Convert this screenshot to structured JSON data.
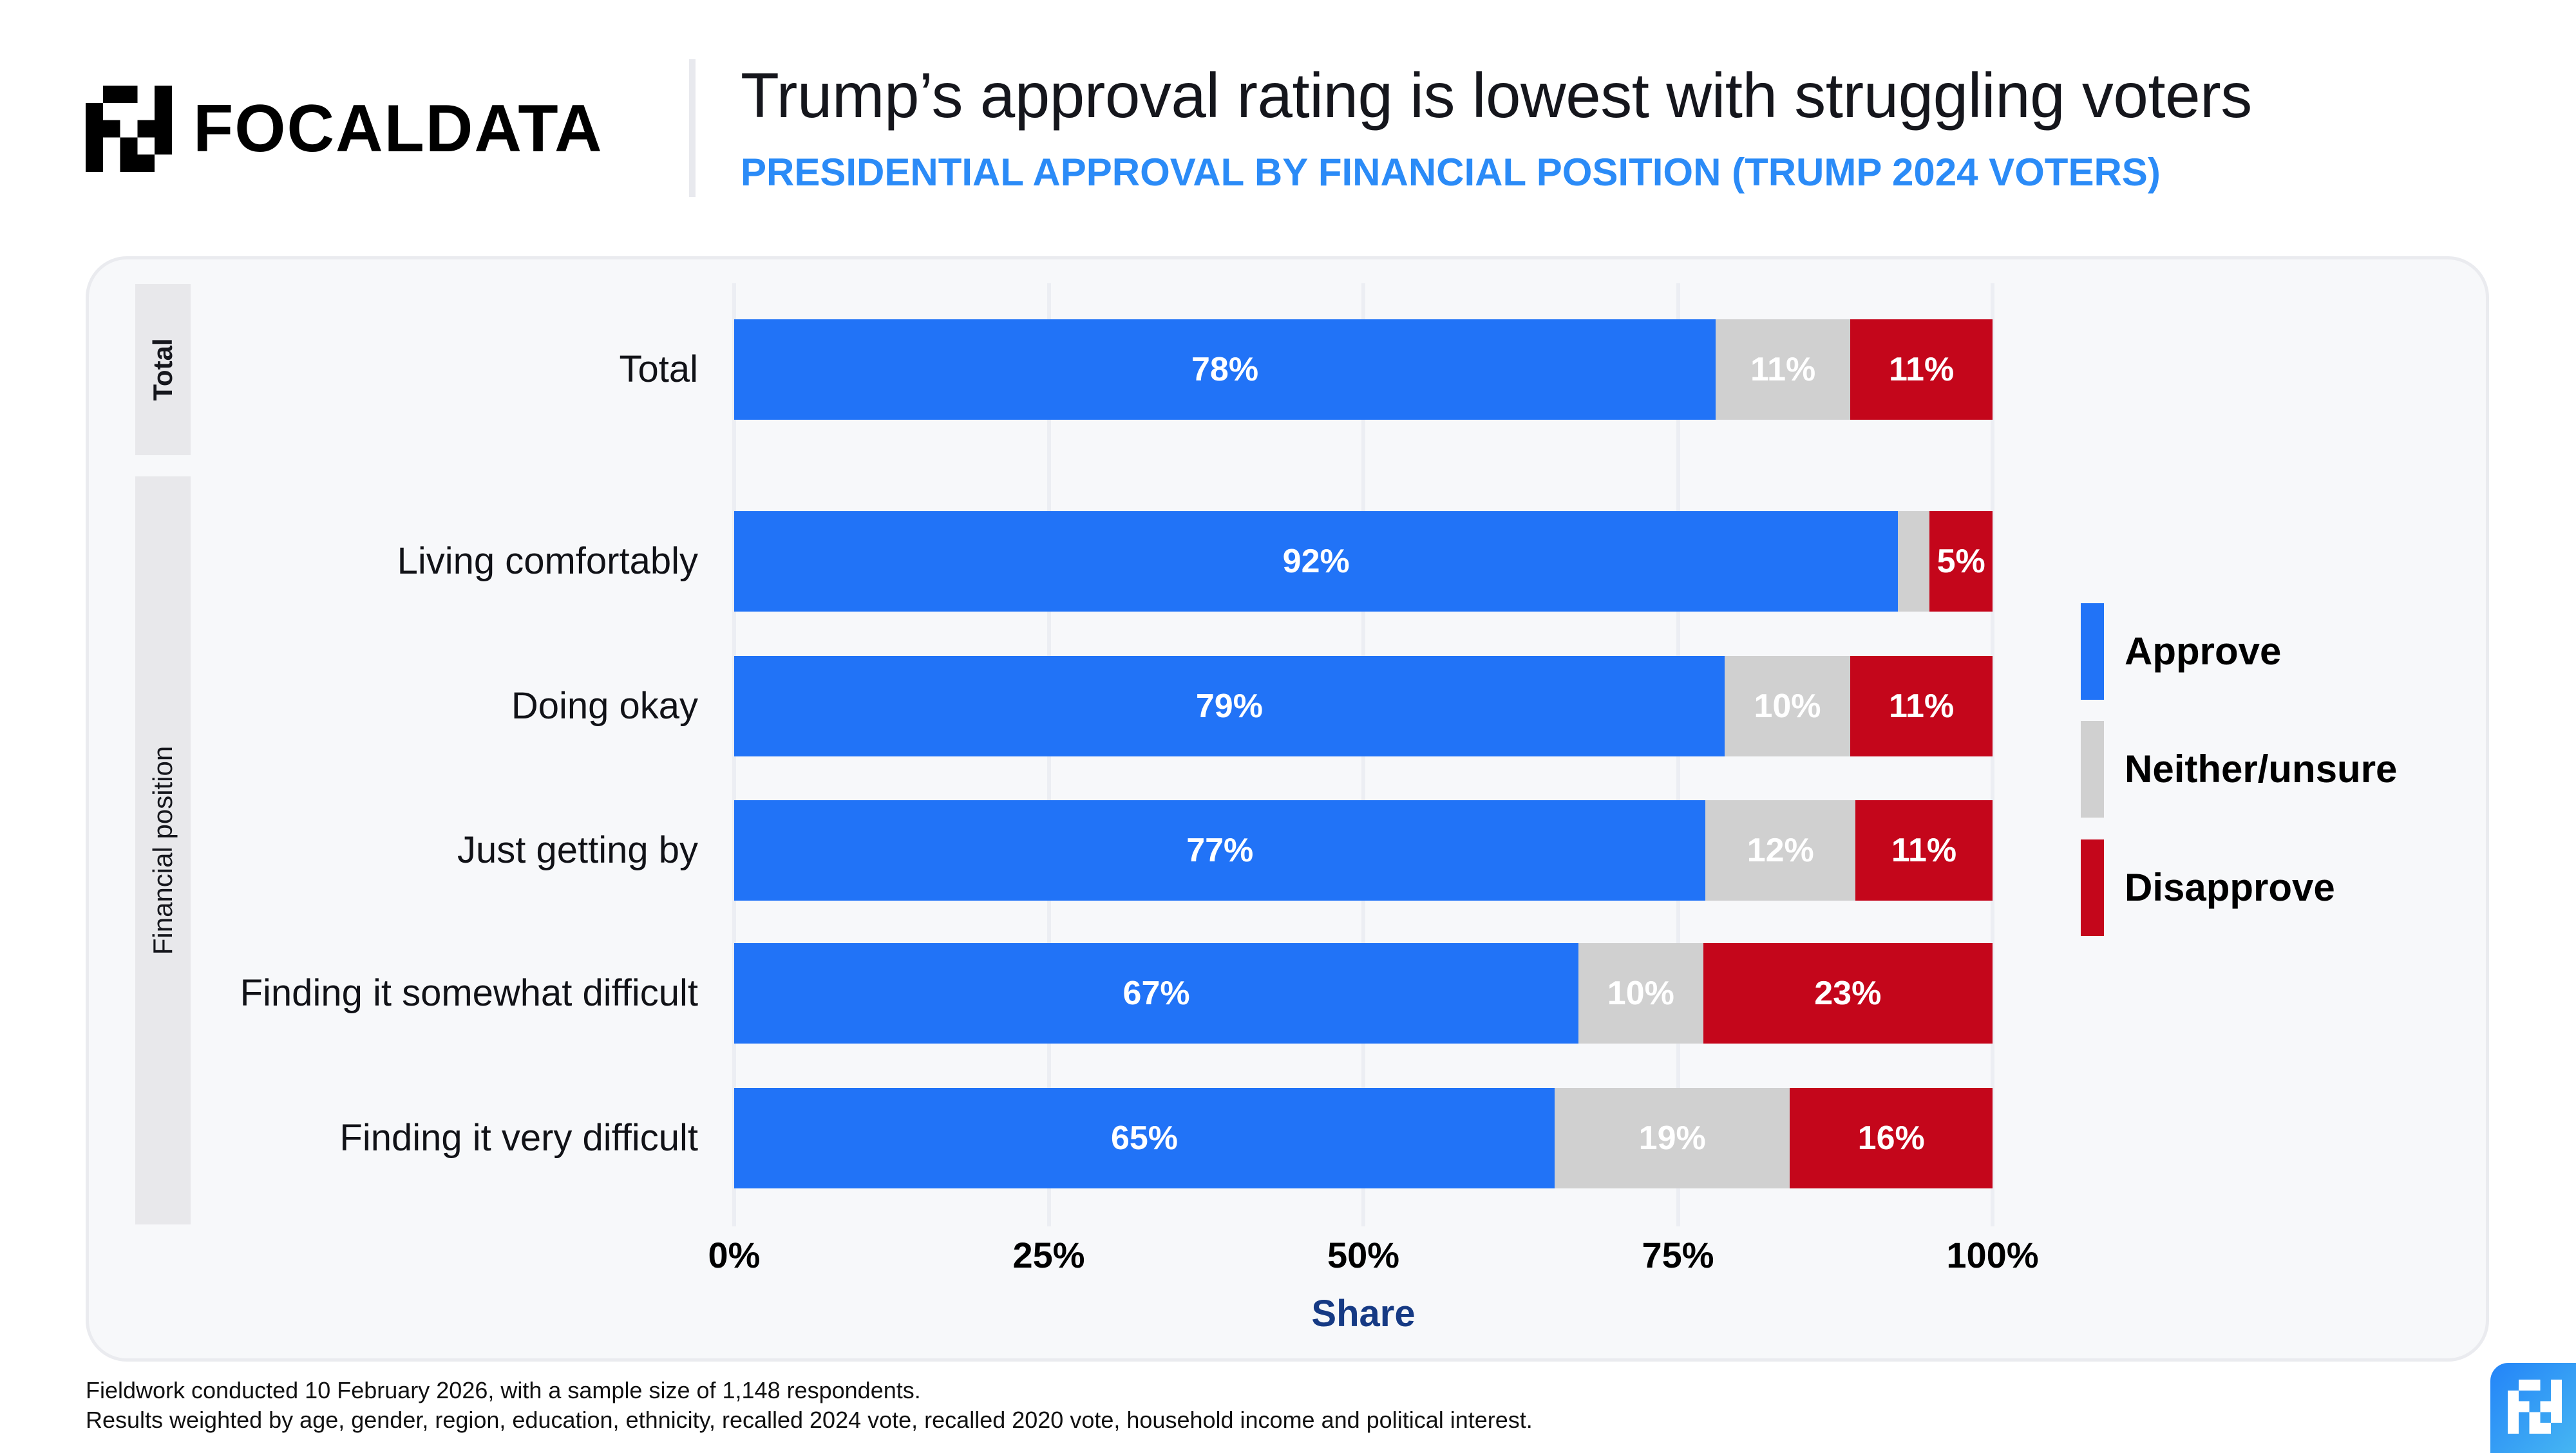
{
  "brand": {
    "name": "FOCALDATA",
    "logo_icon": "focaldata-pixel-logo-icon",
    "accent_color": "#2b8bf7"
  },
  "header": {
    "title": "Trump’s approval rating is lowest with struggling voters",
    "subtitle": "PRESIDENTIAL APPROVAL BY FINANCIAL POSITION (TRUMP 2024 VOTERS)"
  },
  "footer": {
    "notes": [
      "Fieldwork conducted 10 February 2026, with a sample size of 1,148 respondents.",
      "Results weighted by age, gender, region, education, ethnicity, recalled 2024 vote, recalled 2020 vote, household income and political interest."
    ],
    "badge_icon": "focaldata-badge-icon"
  },
  "chart_data": {
    "type": "bar",
    "orientation": "horizontal",
    "stacked": true,
    "title": "Trump’s approval rating is lowest with struggling voters",
    "subtitle": "PRESIDENTIAL APPROVAL BY FINANCIAL POSITION (TRUMP 2024 VOTERS)",
    "xlabel": "Share",
    "ylabel": "",
    "xlim": [
      0,
      100
    ],
    "x_ticks": [
      0,
      25,
      50,
      75,
      100
    ],
    "x_tick_labels": [
      "0%",
      "25%",
      "50%",
      "75%",
      "100%"
    ],
    "grid": true,
    "legend_position": "right",
    "groups": [
      {
        "name": "Total",
        "categories": [
          "Total"
        ]
      },
      {
        "name": "Financial position",
        "categories": [
          "Living comfortably",
          "Doing okay",
          "Just getting by",
          "Finding it somewhat difficult",
          "Finding it very difficult"
        ]
      }
    ],
    "categories": [
      "Total",
      "Living comfortably",
      "Doing okay",
      "Just getting by",
      "Finding it somewhat difficult",
      "Finding it very difficult"
    ],
    "series": [
      {
        "name": "Approve",
        "color": "#2173f7",
        "values": [
          78,
          92.5,
          78.7,
          77.2,
          67.1,
          65.2
        ],
        "labels": [
          "78%",
          "92%",
          "79%",
          "77%",
          "67%",
          "65%"
        ],
        "label_color": "#ffffff"
      },
      {
        "name": "Neither/unsure",
        "color": "#d0d0d0",
        "values": [
          10.7,
          2.5,
          10,
          11.9,
          9.9,
          18.7
        ],
        "labels": [
          "11%",
          "",
          "10%",
          "12%",
          "10%",
          "19%"
        ],
        "label_color": "#ffffff"
      },
      {
        "name": "Disapprove",
        "color": "#c4061b",
        "values": [
          11.3,
          5,
          11.3,
          10.9,
          23,
          16.1
        ],
        "labels": [
          "11%",
          "5%",
          "11%",
          "11%",
          "23%",
          "16%"
        ],
        "label_color": "#ffffff"
      }
    ]
  }
}
